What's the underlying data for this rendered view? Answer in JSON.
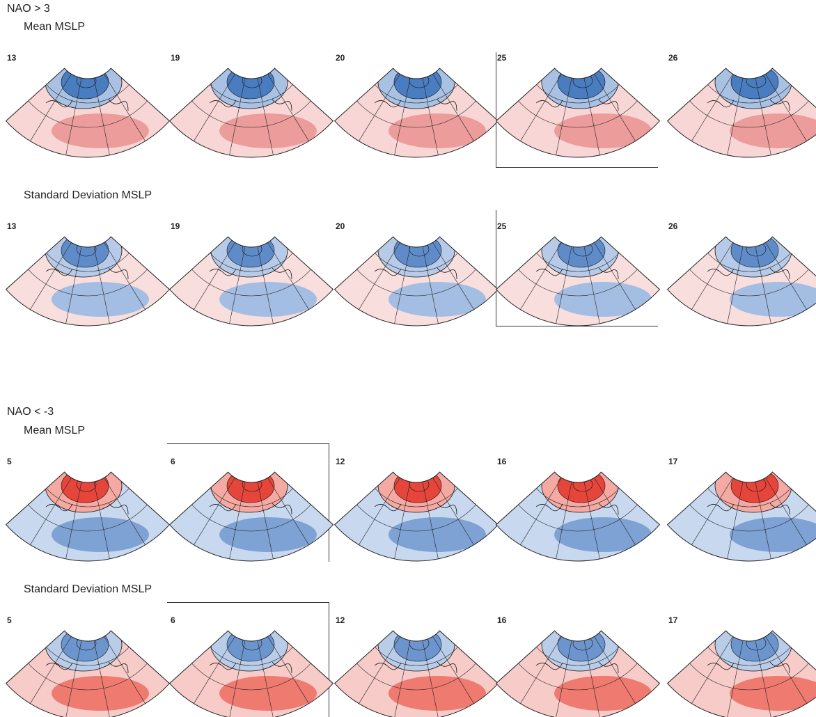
{
  "sections": [
    {
      "title": "NAO > 3",
      "rows": [
        {
          "title": "Mean MSLP",
          "panels": [
            "13",
            "19",
            "20",
            "25",
            "26"
          ]
        },
        {
          "title": "Standard Deviation MSLP",
          "panels": [
            "13",
            "19",
            "20",
            "25",
            "26"
          ]
        }
      ]
    },
    {
      "title": "NAO < -3",
      "rows": [
        {
          "title": "Mean MSLP",
          "panels": [
            "5",
            "6",
            "12",
            "16",
            "17"
          ]
        },
        {
          "title": "Standard Deviation MSLP",
          "panels": [
            "5",
            "6",
            "12",
            "16",
            "17"
          ]
        }
      ]
    }
  ]
}
